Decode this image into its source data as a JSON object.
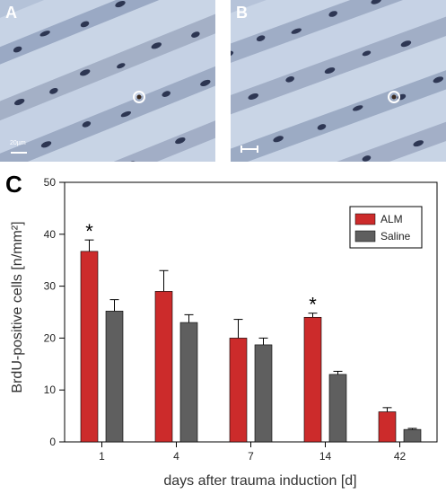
{
  "panels": {
    "a_label": "A",
    "b_label": "B",
    "c_label": "C",
    "a_scalebar_text": "20µm"
  },
  "chart_data": {
    "type": "bar",
    "categories": [
      "1",
      "4",
      "7",
      "14",
      "42"
    ],
    "series": [
      {
        "name": "ALM",
        "values": [
          36.7,
          29.0,
          20.0,
          24.0,
          5.8
        ],
        "errors": [
          2.2,
          4.0,
          3.6,
          0.8,
          0.8
        ],
        "color": "#cc2b2b"
      },
      {
        "name": "Saline",
        "values": [
          25.2,
          23.0,
          18.7,
          13.0,
          2.4
        ],
        "errors": [
          2.2,
          1.5,
          1.3,
          0.6,
          0.2
        ],
        "color": "#5f5f5f"
      }
    ],
    "significance": [
      {
        "category": "1",
        "series": "ALM",
        "mark": "*"
      },
      {
        "category": "14",
        "series": "ALM",
        "mark": "*"
      }
    ],
    "xlabel": "days after trauma induction [d]",
    "ylabel": "BrdU-positive cells [n/mm²]",
    "ylim": [
      0,
      50
    ],
    "yticks": [
      0,
      10,
      20,
      30,
      40,
      50
    ],
    "legend_position": "top-right"
  }
}
